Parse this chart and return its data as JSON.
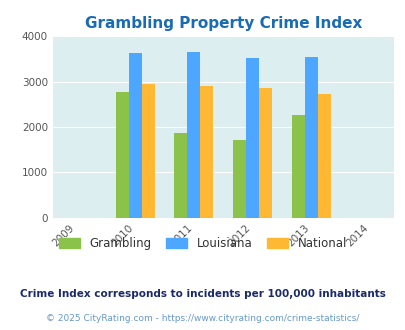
{
  "title": "Grambling Property Crime Index",
  "title_color": "#1a6bb5",
  "years": [
    2010,
    2011,
    2012,
    2013
  ],
  "x_ticks": [
    2009,
    2010,
    2011,
    2012,
    2013,
    2014
  ],
  "grambling": [
    2780,
    1860,
    1720,
    2270
  ],
  "louisiana": [
    3640,
    3660,
    3520,
    3540
  ],
  "national": [
    2940,
    2910,
    2860,
    2720
  ],
  "bar_colors": {
    "grambling": "#8bc34a",
    "louisiana": "#4da6ff",
    "national": "#ffb833"
  },
  "ylim": [
    0,
    4000
  ],
  "yticks": [
    0,
    1000,
    2000,
    3000,
    4000
  ],
  "bar_width": 0.22,
  "background_color": "#ffffff",
  "plot_bg": "#dceef0",
  "legend_labels": [
    "Grambling",
    "Louisiana",
    "National"
  ],
  "legend_text_color": "#333333",
  "footnote1": "Crime Index corresponds to incidents per 100,000 inhabitants",
  "footnote2": "© 2025 CityRating.com - https://www.cityrating.com/crime-statistics/",
  "footnote1_color": "#1a2a6b",
  "footnote2_color": "#6699cc"
}
